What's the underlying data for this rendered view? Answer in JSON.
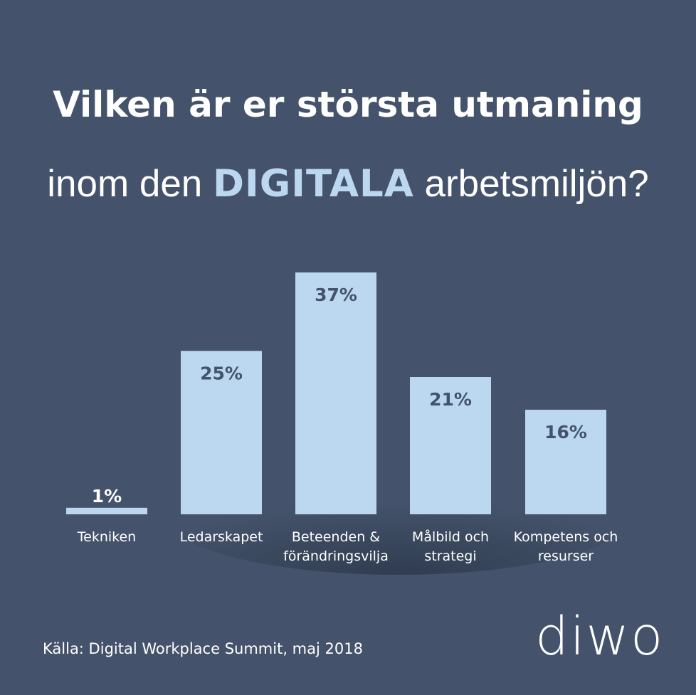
{
  "title": {
    "line1": "Vilken är er största utmaning",
    "line2_prefix": "inom den ",
    "line2_highlight": "DIGITALA",
    "line2_suffix": " arbetsmiljön?"
  },
  "chart_data": {
    "type": "bar",
    "categories": [
      [
        "Tekniken"
      ],
      [
        "Ledarskapet"
      ],
      [
        "Beteenden &",
        "förändringsvilja"
      ],
      [
        "Målbild och",
        "strategi"
      ],
      [
        "Kompetens och",
        "resurser"
      ]
    ],
    "values": [
      1,
      25,
      37,
      21,
      16
    ],
    "value_labels": [
      "1%",
      "25%",
      "37%",
      "21%",
      "16%"
    ],
    "unit": "%",
    "ylim": [
      0,
      37
    ],
    "grid": false,
    "legend": "none"
  },
  "colors": {
    "background": "#44536b",
    "bar": "#bcd8f0",
    "bar_label": "#44536b",
    "text": "#ffffff",
    "highlight": "#bcd8f0"
  },
  "footer": {
    "source": "Källa: Digital Workplace Summit, maj 2018",
    "logo": "diwo"
  }
}
